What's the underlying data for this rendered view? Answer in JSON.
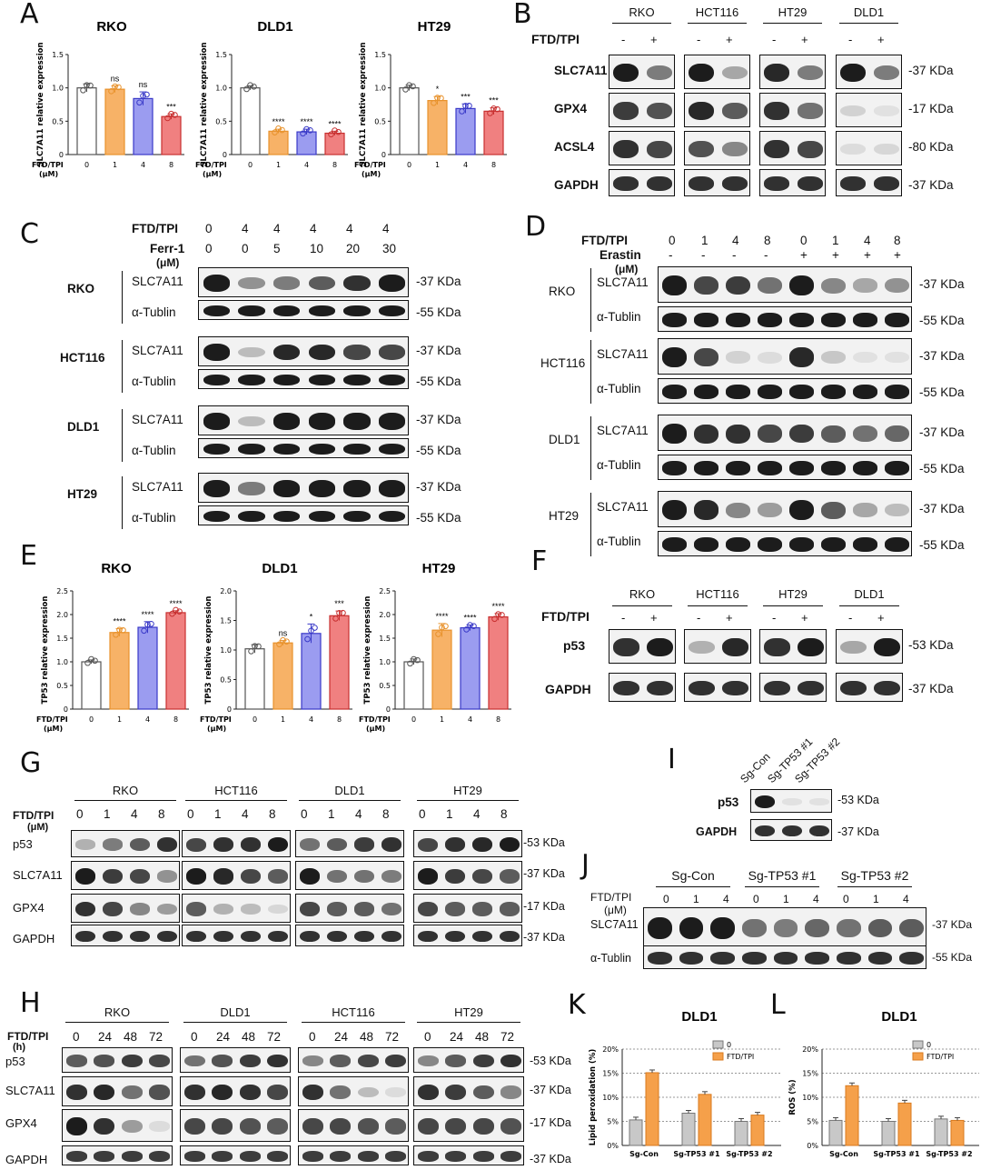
{
  "panels": {
    "A": {
      "letter": "A",
      "charts": [
        {
          "title": "RKO",
          "sig": [
            "",
            "ns",
            "ns",
            "***"
          ]
        },
        {
          "title": "DLD1",
          "sig": [
            "",
            "****",
            "****",
            "****"
          ]
        },
        {
          "title": "HT29",
          "sig": [
            "",
            "*",
            "***",
            "***"
          ]
        }
      ],
      "ylabel": "SLC7A11 relative expression",
      "xlabel": "FTD/TPI (μM)"
    },
    "B": {
      "letter": "B",
      "cells": [
        "RKO",
        "HCT116",
        "HT29",
        "DLD1"
      ],
      "treat": "FTD/TPI",
      "minus": "-",
      "plus": "+",
      "rows": [
        "SLC7A11",
        "GPX4",
        "ACSL4",
        "GAPDH"
      ],
      "kda": [
        "-37 KDa",
        "-17 KDa",
        "-80 KDa",
        "-37 KDa"
      ]
    },
    "C": {
      "letter": "C",
      "treat": "FTD/TPI",
      "treat_vals": [
        "0",
        "4",
        "4",
        "4",
        "4",
        "4"
      ],
      "ferr": "Ferr-1",
      "ferr_unit": "(μM)",
      "ferr_vals": [
        "0",
        "0",
        "5",
        "10",
        "20",
        "30"
      ],
      "cells": [
        "RKO",
        "HCT116",
        "DLD1",
        "HT29"
      ],
      "rows": [
        "SLC7A11",
        "α-Tublin"
      ],
      "kda": [
        "-37 KDa",
        "-55 KDa"
      ]
    },
    "D": {
      "letter": "D",
      "treat": "FTD/TPI",
      "treat_vals": [
        "0",
        "1",
        "4",
        "8",
        "0",
        "1",
        "4",
        "8"
      ],
      "erastin": "Erastin",
      "erastin_unit": "(μM)",
      "erastin_vals": [
        "-",
        "-",
        "-",
        "-",
        "+",
        "+",
        "+",
        "+"
      ],
      "cells": [
        "RKO",
        "HCT116",
        "DLD1",
        "HT29"
      ],
      "rows": [
        "SLC7A11",
        "α-Tublin"
      ],
      "kda": [
        "-37 KDa",
        "-55 KDa"
      ]
    },
    "E": {
      "letter": "E",
      "charts": [
        {
          "title": "RKO",
          "sig": [
            "",
            "****",
            "****",
            "****"
          ]
        },
        {
          "title": "DLD1",
          "sig": [
            "",
            "ns",
            "*",
            "***"
          ]
        },
        {
          "title": "HT29",
          "sig": [
            "",
            "****",
            "****",
            "****"
          ]
        }
      ],
      "ylabel": "TP53 relative expression",
      "xlabel": "FTD/TPI (μM)"
    },
    "F": {
      "letter": "F",
      "cells": [
        "RKO",
        "HCT116",
        "HT29",
        "DLD1"
      ],
      "treat": "FTD/TPI",
      "minus": "-",
      "plus": "+",
      "rows": [
        "p53",
        "GAPDH"
      ],
      "kda": [
        "-53 KDa",
        "-37 KDa"
      ]
    },
    "G": {
      "letter": "G",
      "cells": [
        "RKO",
        "HCT116",
        "DLD1",
        "HT29"
      ],
      "treat": "FTD/TPI",
      "unit": "(μM)",
      "doses": [
        "0",
        "1",
        "4",
        "8"
      ],
      "rows": [
        "p53",
        "SLC7A11",
        "GPX4",
        "GAPDH"
      ],
      "kda": [
        "-53 KDa",
        "-37 KDa",
        "-17 KDa",
        "-37 KDa"
      ]
    },
    "H": {
      "letter": "H",
      "cells": [
        "RKO",
        "DLD1",
        "HCT116",
        "HT29"
      ],
      "treat": "FTD/TPI",
      "unit": "(h)",
      "times": [
        "0",
        "24",
        "48",
        "72"
      ],
      "rows": [
        "p53",
        "SLC7A11",
        "GPX4",
        "GAPDH"
      ],
      "kda": [
        "-53 KDa",
        "-37 KDa",
        "-17 KDa",
        "-37 KDa"
      ]
    },
    "I": {
      "letter": "I",
      "lanes": [
        "Sg-Con",
        "Sg-TP53 #1",
        "Sg-TP53 #2"
      ],
      "rows": [
        "p53",
        "GAPDH"
      ],
      "kda": [
        "-53 KDa",
        "-37 KDa"
      ]
    },
    "J": {
      "letter": "J",
      "groups": [
        "Sg-Con",
        "Sg-TP53 #1",
        "Sg-TP53 #2"
      ],
      "treat": "FTD/TPI",
      "unit": "(μM)",
      "doses": [
        "0",
        "1",
        "4",
        "0",
        "1",
        "4",
        "0",
        "1",
        "4"
      ],
      "rows": [
        "SLC7A11",
        "α-Tublin"
      ],
      "kda": [
        "-37 KDa",
        "-55 KDa"
      ]
    },
    "K": {
      "letter": "K",
      "title": "DLD1",
      "ylabel": "Lipid peroxidation (%)"
    },
    "L": {
      "letter": "L",
      "title": "DLD1",
      "ylabel": "ROS (%)"
    }
  },
  "colors": {
    "c0": "#ffffff",
    "c1": "#f7b267",
    "c2": "#9b9cf0",
    "c3": "#f08080",
    "gray": "#c8c8c8",
    "orange": "#f5a04a"
  },
  "chart_data": [
    {
      "type": "bar",
      "title": "RKO",
      "ylabel": "SLC7A11 relative expression",
      "xlabel": "FTD/TPI (μM)",
      "categories": [
        "0",
        "1",
        "4",
        "8"
      ],
      "values": [
        1.0,
        0.98,
        0.84,
        0.57
      ],
      "errors": [
        0.06,
        0.05,
        0.1,
        0.04
      ],
      "ylim": [
        0,
        1.5
      ],
      "yticks": [
        0,
        0.5,
        1.0,
        1.5
      ]
    },
    {
      "type": "bar",
      "title": "DLD1",
      "ylabel": "SLC7A11 relative expression",
      "xlabel": "FTD/TPI (μM)",
      "categories": [
        "0",
        "1",
        "4",
        "8"
      ],
      "values": [
        1.0,
        0.35,
        0.34,
        0.32
      ],
      "errors": [
        0.03,
        0.03,
        0.04,
        0.03
      ],
      "ylim": [
        0,
        1.5
      ],
      "yticks": [
        0,
        0.5,
        1.0,
        1.5
      ]
    },
    {
      "type": "bar",
      "title": "HT29",
      "ylabel": "SLC7A11 relative expression",
      "xlabel": "FTD/TPI (μM)",
      "categories": [
        "0",
        "1",
        "4",
        "8"
      ],
      "values": [
        1.0,
        0.81,
        0.69,
        0.65
      ],
      "errors": [
        0.04,
        0.06,
        0.07,
        0.05
      ],
      "ylim": [
        0,
        1.5
      ],
      "yticks": [
        0,
        0.5,
        1.0,
        1.5
      ]
    },
    {
      "type": "bar",
      "title": "RKO",
      "ylabel": "TP53 relative expression",
      "xlabel": "FTD/TPI (μM)",
      "categories": [
        "0",
        "1",
        "4",
        "8"
      ],
      "values": [
        1.0,
        1.62,
        1.73,
        2.04
      ],
      "errors": [
        0.04,
        0.08,
        0.12,
        0.04
      ],
      "ylim": [
        0,
        2.5
      ],
      "yticks": [
        0,
        0.5,
        1.0,
        1.5,
        2.0,
        2.5
      ]
    },
    {
      "type": "bar",
      "title": "DLD1",
      "ylabel": "TP53 relative expression",
      "xlabel": "FTD/TPI (μM)",
      "categories": [
        "0",
        "1",
        "4",
        "8"
      ],
      "values": [
        1.02,
        1.12,
        1.28,
        1.58
      ],
      "errors": [
        0.07,
        0.04,
        0.16,
        0.08
      ],
      "ylim": [
        0,
        2.0
      ],
      "yticks": [
        0,
        0.5,
        1.0,
        1.5,
        2.0
      ]
    },
    {
      "type": "bar",
      "title": "HT29",
      "ylabel": "TP53 relative expression",
      "xlabel": "FTD/TPI (μM)",
      "categories": [
        "0",
        "1",
        "4",
        "8"
      ],
      "values": [
        1.0,
        1.67,
        1.72,
        1.95
      ],
      "errors": [
        0.06,
        0.14,
        0.06,
        0.07
      ],
      "ylim": [
        0,
        2.5
      ],
      "yticks": [
        0,
        0.5,
        1.0,
        1.5,
        2.0,
        2.5
      ]
    },
    {
      "type": "bar",
      "title": "DLD1",
      "ylabel": "Lipid peroxidation (%)",
      "categories": [
        "Sg-Con",
        "Sg-TP53 #1",
        "Sg-TP53 #2"
      ],
      "series": [
        {
          "name": "0",
          "values": [
            5.3,
            6.7,
            5.0
          ]
        },
        {
          "name": "FTD/TPI",
          "values": [
            15.1,
            10.6,
            6.3
          ]
        }
      ],
      "ylim": [
        0,
        20
      ],
      "yticks": [
        0,
        5,
        10,
        15,
        20
      ],
      "legend": "top-right"
    },
    {
      "type": "bar",
      "title": "DLD1",
      "ylabel": "ROS (%)",
      "categories": [
        "Sg-Con",
        "Sg-TP53 #1",
        "Sg-TP53 #2"
      ],
      "series": [
        {
          "name": "0",
          "values": [
            5.2,
            5.0,
            5.5
          ]
        },
        {
          "name": "FTD/TPI",
          "values": [
            12.4,
            8.8,
            5.2
          ]
        }
      ],
      "ylim": [
        0,
        20
      ],
      "yticks": [
        0,
        5,
        10,
        15,
        20
      ],
      "legend": "top-right"
    }
  ]
}
